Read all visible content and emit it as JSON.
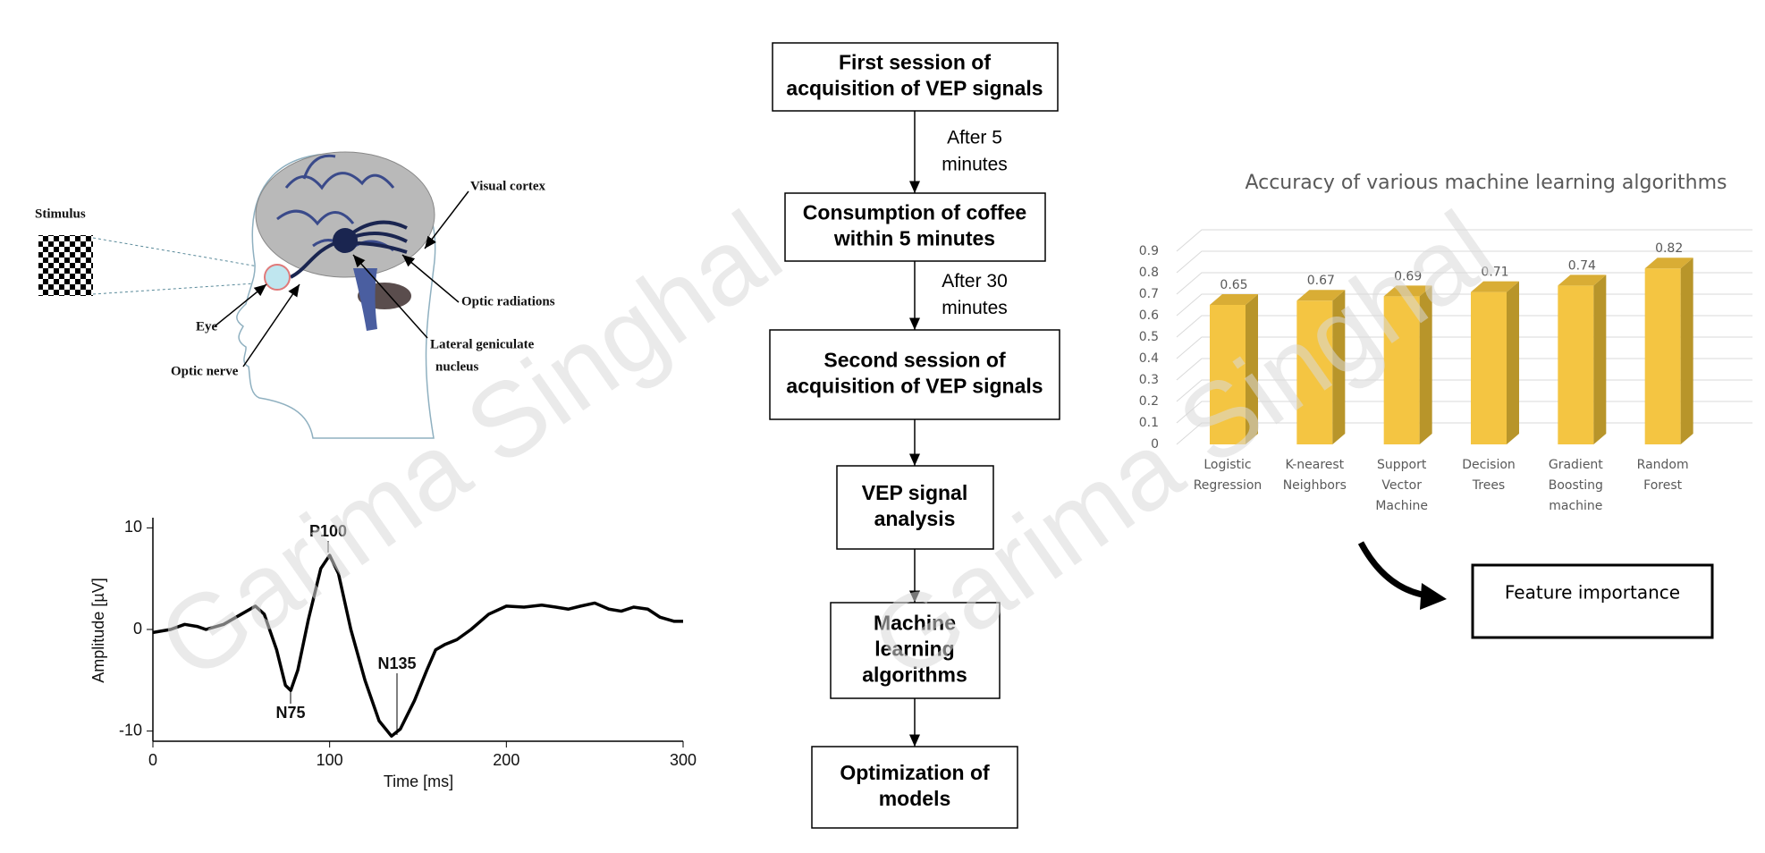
{
  "chart_data": [
    {
      "type": "line",
      "y_label": "Amplitude [µV]",
      "x_label": "Time [ms]",
      "x": [
        0,
        10,
        18,
        25,
        30,
        40,
        50,
        58,
        63,
        70,
        75,
        78,
        82,
        88,
        95,
        100,
        105,
        112,
        120,
        128,
        135,
        140,
        148,
        155,
        160,
        165,
        172,
        180,
        190,
        200,
        210,
        220,
        228,
        235,
        242,
        250,
        258,
        265,
        272,
        280,
        287,
        295,
        300
      ],
      "series": [
        {
          "color": "#000000",
          "values": [
            -0.3,
            0,
            0.5,
            0.3,
            0,
            0.5,
            1.5,
            2.3,
            1.5,
            -2,
            -5.5,
            -6,
            -4,
            1,
            6,
            7.3,
            5.5,
            0,
            -5,
            -9,
            -10.5,
            -9.8,
            -7,
            -4,
            -2,
            -1.5,
            -1,
            0,
            1.5,
            2.3,
            2.2,
            2.4,
            2.2,
            2,
            2.3,
            2.6,
            2,
            1.8,
            2.2,
            2,
            1.2,
            0.8,
            0.8
          ]
        }
      ],
      "xlim": [
        0,
        300
      ],
      "xticks": [
        0,
        100,
        200,
        300
      ],
      "ylim": [
        -11,
        11
      ],
      "yticks": [
        -10,
        0,
        10
      ],
      "annotations": [
        "P100",
        "N75",
        "N135"
      ]
    },
    {
      "type": "bar",
      "title": "Accuracy of various machine learning algorithms",
      "categories": [
        "Logistic Regression",
        "K-nearest Neighbors",
        "Support Vector Machine",
        "Decision Trees",
        "Gradient Boosting machine",
        "Random Forest"
      ],
      "values": [
        0.65,
        0.67,
        0.69,
        0.71,
        0.74,
        0.82
      ],
      "color": "#f4c542",
      "ylim": [
        0,
        0.9
      ],
      "yticks": [
        0,
        0.1,
        0.2,
        0.3,
        0.4,
        0.5,
        0.6,
        0.7,
        0.8,
        0.9
      ],
      "grid": true
    }
  ],
  "diagram": {
    "stimulus": "Stimulus",
    "visual_cortex": "Visual cortex",
    "eye": "Eye",
    "optic_radiations": "Optic radiations",
    "optic_nerve": "Optic nerve",
    "lgn": [
      "Lateral geniculate",
      "nucleus"
    ]
  },
  "flowchart": {
    "steps": [
      [
        "First session of",
        "acquisition of VEP signals"
      ],
      [
        "Consumption of coffee",
        "within 5 minutes"
      ],
      [
        "Second session of",
        "acquisition of VEP signals"
      ],
      [
        "VEP signal",
        "analysis"
      ],
      [
        "Machine",
        "learning",
        "algorithms"
      ],
      [
        "Optimization of",
        "models"
      ]
    ],
    "edge_labels": [
      [
        "After 5",
        "minutes"
      ],
      [
        "After 30",
        "minutes"
      ]
    ]
  },
  "feature_box": "Feature importance",
  "watermark": "Garima Singhal"
}
